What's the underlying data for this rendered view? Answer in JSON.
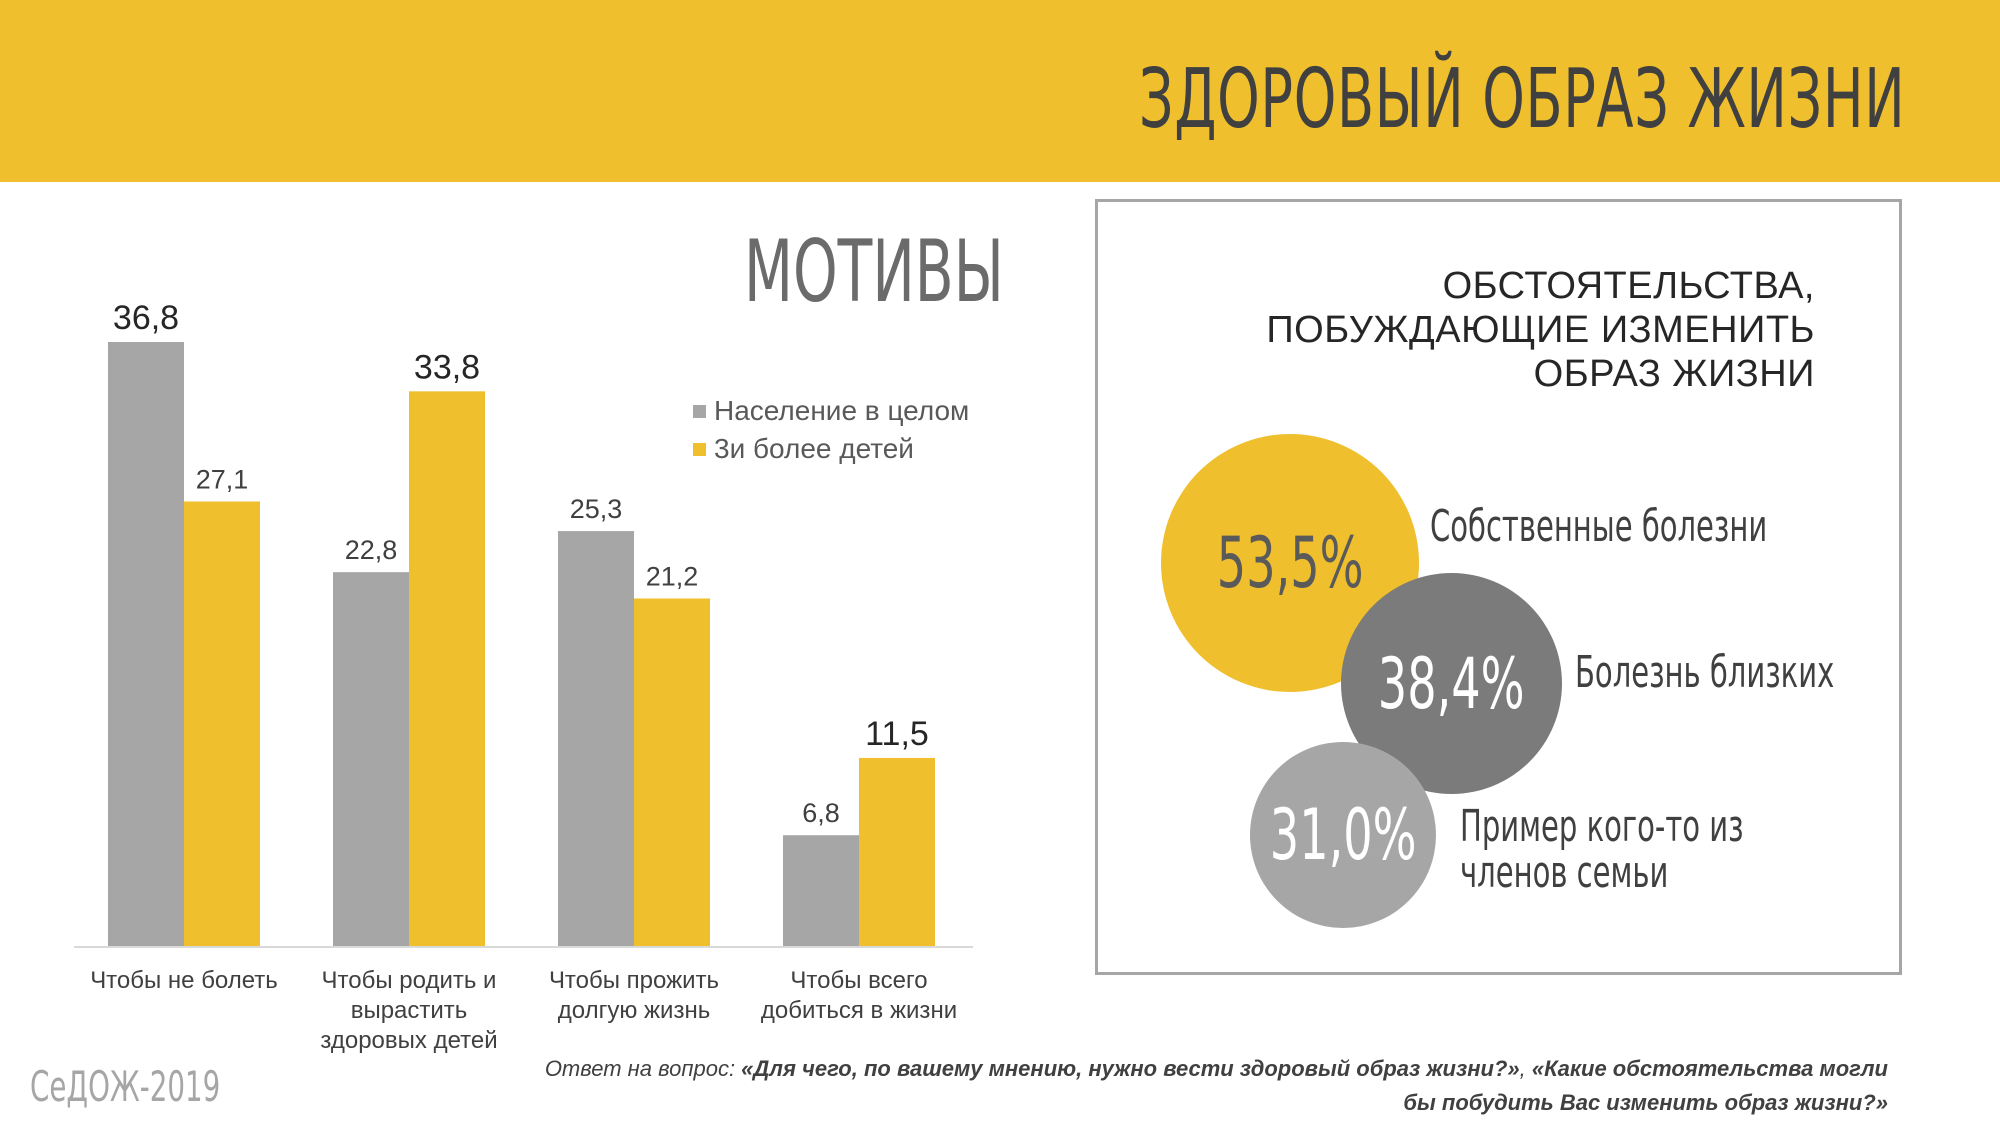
{
  "header": {
    "title": "ЗДОРОВЫЙ ОБРАЗ ЖИЗНИ"
  },
  "colors": {
    "banner": "#efbf2d",
    "population": "#a6a6a6",
    "three_children": "#efbf2d",
    "mid_gray": "#7b7b7b"
  },
  "chart_data": {
    "type": "bar",
    "title": "МОТИВЫ",
    "categories": [
      [
        "Чтобы не болеть"
      ],
      [
        "Чтобы родить и",
        "вырастить",
        "здоровых детей"
      ],
      [
        "Чтобы прожить",
        "долгую жизнь"
      ],
      [
        "Чтобы всего",
        "добиться в жизни"
      ]
    ],
    "series": [
      {
        "name": "Население в целом",
        "values": [
          36.8,
          22.8,
          25.3,
          6.8
        ],
        "labels": [
          "36,8",
          "22,8",
          "25,3",
          "6,8"
        ],
        "highlight": [
          true,
          false,
          false,
          false
        ]
      },
      {
        "name": "3и более детей",
        "values": [
          27.1,
          33.8,
          21.2,
          11.5
        ],
        "labels": [
          "27,1",
          "33,8",
          "21,2",
          "11,5"
        ],
        "highlight": [
          false,
          true,
          false,
          true
        ]
      }
    ],
    "ylim": [
      0,
      40
    ],
    "grid": false,
    "legend": "top-right"
  },
  "circumstances": {
    "title_lines": [
      "ОБСТОЯТЕЛЬСТВА,",
      "ПОБУЖДАЮЩИЕ ИЗМЕНИТЬ",
      "ОБРАЗ ЖИЗНИ"
    ],
    "items": [
      {
        "value": "53,5%",
        "label_lines": [
          "Собственные болезни"
        ],
        "color": "#efbf2d",
        "text_color": "#5a5a5a"
      },
      {
        "value": "38,4%",
        "label_lines": [
          "Болезнь близких"
        ],
        "color": "#7b7b7b",
        "text_color": "#ffffff"
      },
      {
        "value": "31,0%",
        "label_lines": [
          "Пример кого-то из",
          "членов семьи"
        ],
        "color": "#a6a6a6",
        "text_color": "#ffffff"
      }
    ]
  },
  "source": "СеДОЖ-2019",
  "footnote": {
    "prefix": "Ответ на вопрос: ",
    "q1": "«Для чего, по вашему мнению, нужно вести здоровый образ жизни?»",
    "sep": ", ",
    "q2a": "«Какие обстоятельства могли",
    "q2b": "бы побудить Вас изменить образ жизни?»"
  }
}
